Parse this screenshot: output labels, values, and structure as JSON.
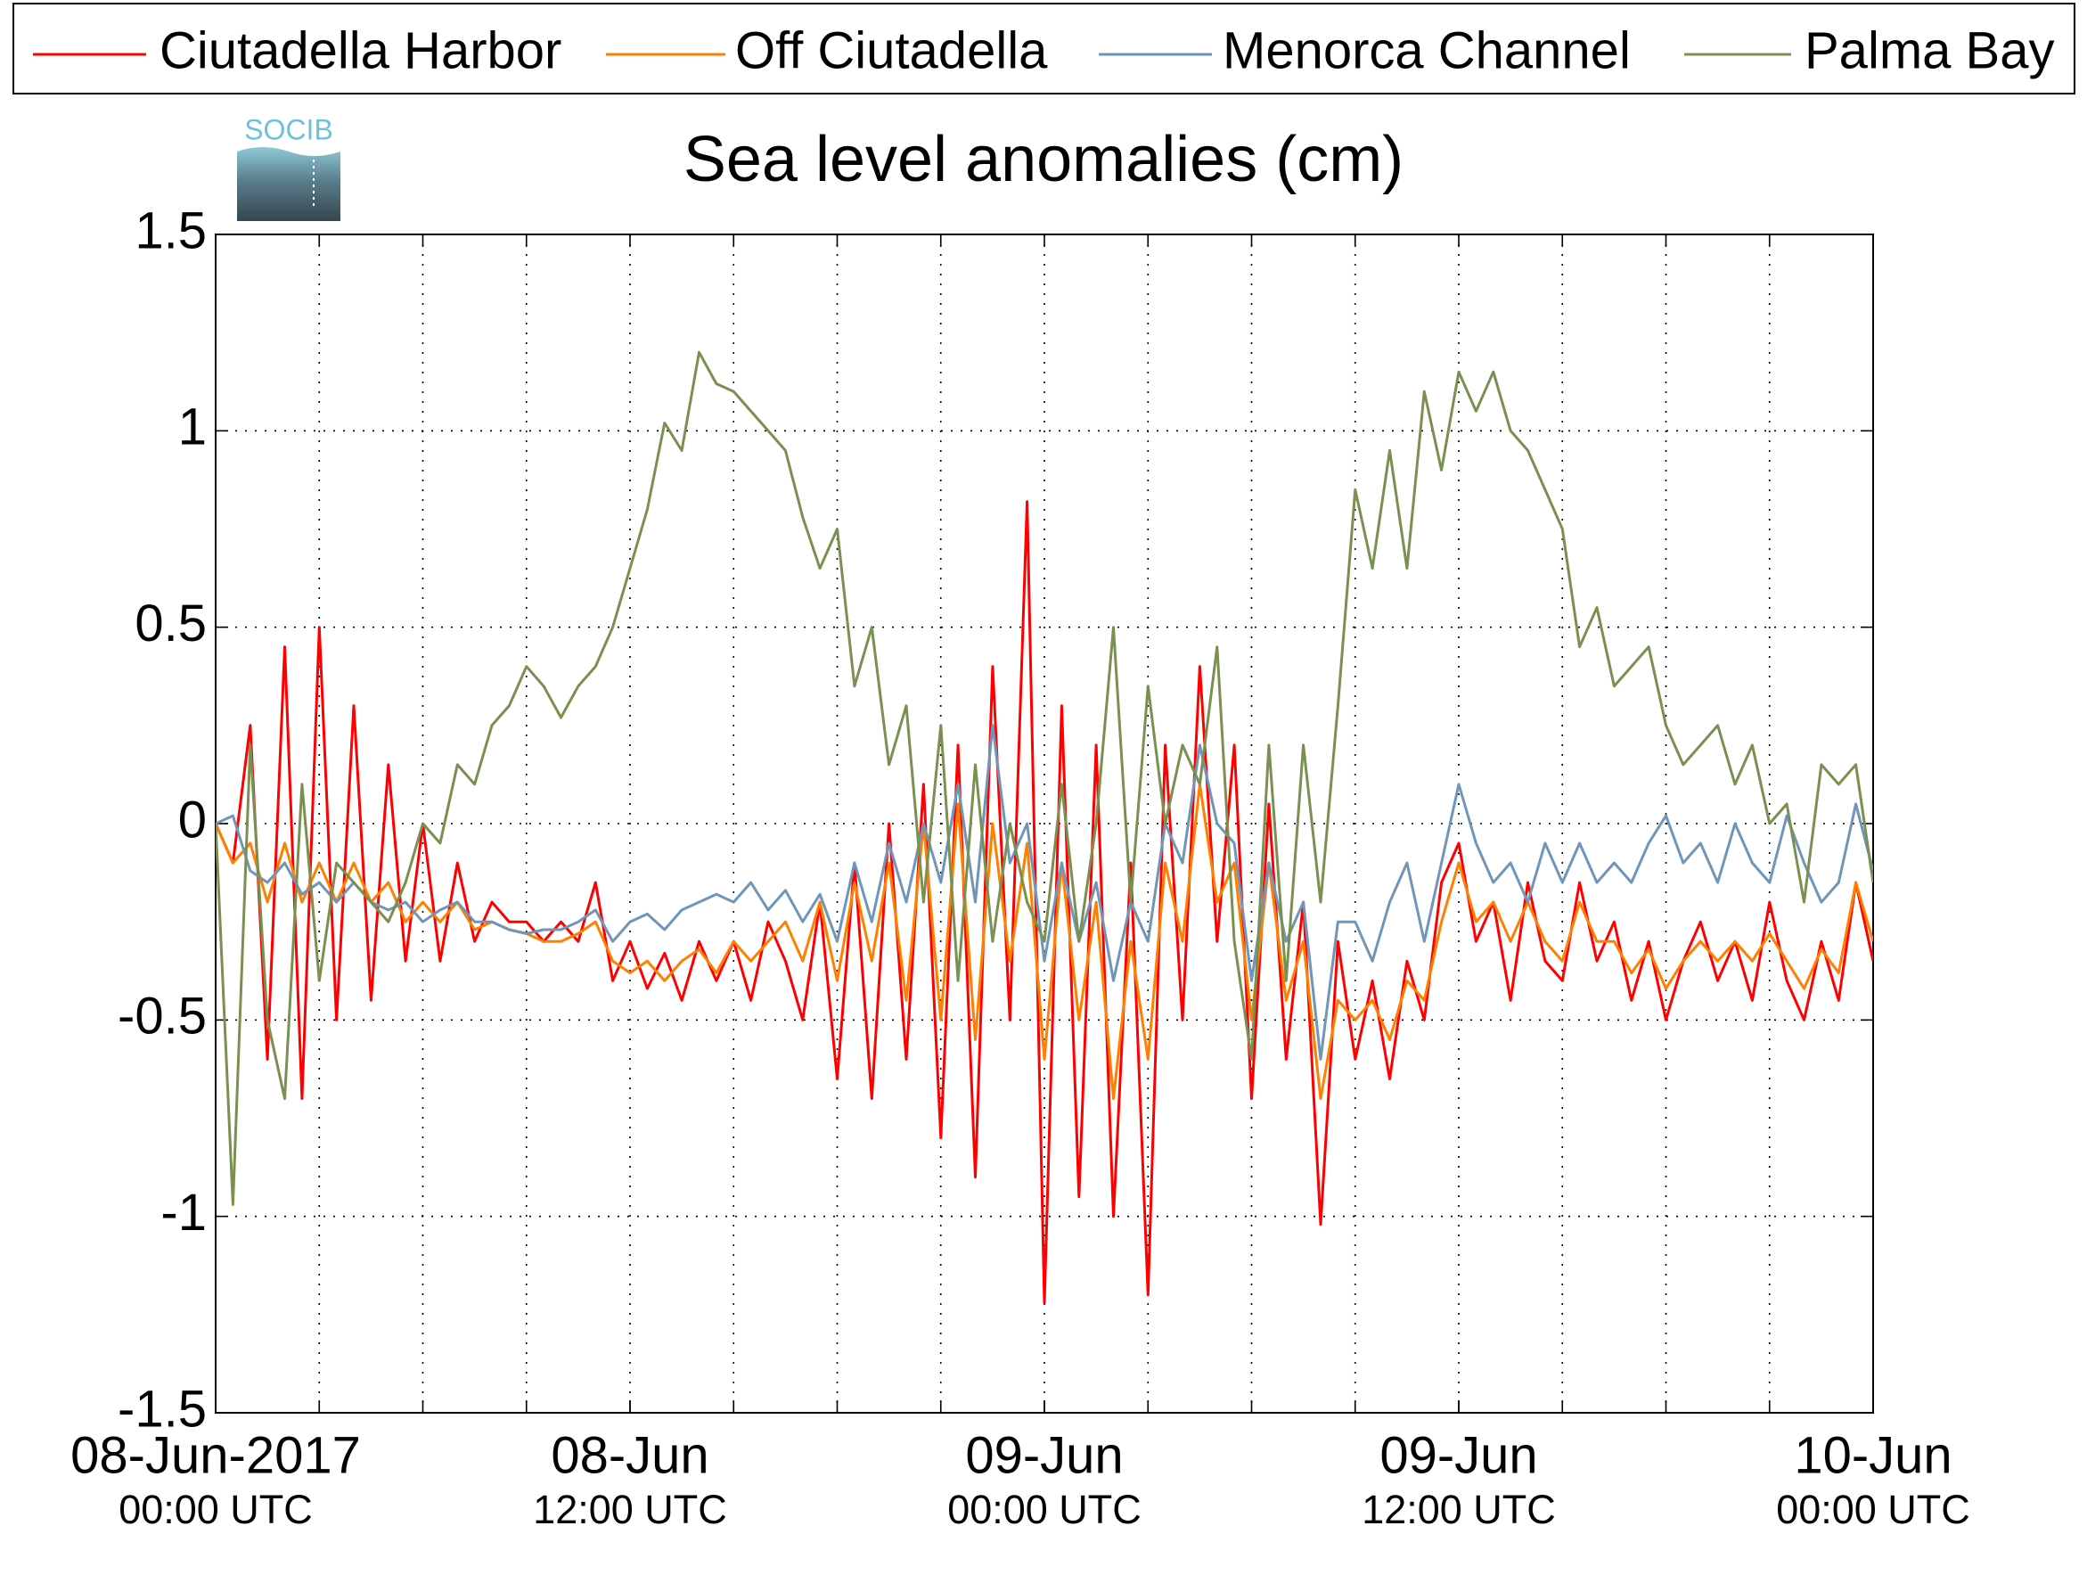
{
  "logo": "SOCIB",
  "chart_data": {
    "type": "line",
    "title": "Sea level anomalies (cm)",
    "legend": "top",
    "grid": true,
    "xlim": [
      0,
      48
    ],
    "xticks": [
      {
        "value": 0,
        "label": "08-Jun-2017",
        "sublabel": "00:00 UTC"
      },
      {
        "value": 12,
        "label": "08-Jun",
        "sublabel": "12:00 UTC"
      },
      {
        "value": 24,
        "label": "09-Jun",
        "sublabel": "00:00 UTC"
      },
      {
        "value": 36,
        "label": "09-Jun",
        "sublabel": "12:00 UTC"
      },
      {
        "value": 48,
        "label": "10-Jun",
        "sublabel": "00:00 UTC"
      }
    ],
    "xgrid_ticks": [
      3,
      6,
      9,
      12,
      15,
      18,
      21,
      24,
      27,
      30,
      33,
      36,
      39,
      42,
      45
    ],
    "ylim": [
      -1.5,
      1.5
    ],
    "yticks": [
      -1.5,
      -1,
      -0.5,
      0,
      0.5,
      1,
      1.5
    ],
    "x": [
      0,
      0.5,
      1,
      1.5,
      2,
      2.5,
      3,
      3.5,
      4,
      4.5,
      5,
      5.5,
      6,
      6.5,
      7,
      7.5,
      8,
      8.5,
      9,
      9.5,
      10,
      10.5,
      11,
      11.5,
      12,
      12.5,
      13,
      13.5,
      14,
      14.5,
      15,
      15.5,
      16,
      16.5,
      17,
      17.5,
      18,
      18.5,
      19,
      19.5,
      20,
      20.5,
      21,
      21.5,
      22,
      22.5,
      23,
      23.5,
      24,
      24.5,
      25,
      25.5,
      26,
      26.5,
      27,
      27.5,
      28,
      28.5,
      29,
      29.5,
      30,
      30.5,
      31,
      31.5,
      32,
      32.5,
      33,
      33.5,
      34,
      34.5,
      35,
      35.5,
      36,
      36.5,
      37,
      37.5,
      38,
      38.5,
      39,
      39.5,
      40,
      40.5,
      41,
      41.5,
      42,
      42.5,
      43,
      43.5,
      44,
      44.5,
      45,
      45.5,
      46,
      46.5,
      47,
      47.5,
      48
    ],
    "series": [
      {
        "name": "Ciutadella Harbor",
        "color": "#ff0000",
        "values": [
          0,
          -0.1,
          0.25,
          -0.6,
          0.45,
          -0.7,
          0.5,
          -0.5,
          0.3,
          -0.45,
          0.15,
          -0.35,
          0,
          -0.35,
          -0.1,
          -0.3,
          -0.2,
          -0.25,
          -0.25,
          -0.3,
          -0.25,
          -0.3,
          -0.15,
          -0.4,
          -0.3,
          -0.42,
          -0.33,
          -0.45,
          -0.3,
          -0.4,
          -0.3,
          -0.45,
          -0.25,
          -0.35,
          -0.5,
          -0.2,
          -0.65,
          -0.1,
          -0.7,
          0,
          -0.6,
          0.1,
          -0.8,
          0.2,
          -0.9,
          0.4,
          -0.5,
          0.82,
          -1.22,
          0.3,
          -0.95,
          0.2,
          -1,
          -0.1,
          -1.2,
          0.2,
          -0.5,
          0.4,
          -0.3,
          0.2,
          -0.7,
          0.05,
          -0.6,
          -0.2,
          -1.02,
          -0.3,
          -0.6,
          -0.4,
          -0.65,
          -0.35,
          -0.5,
          -0.15,
          -0.05,
          -0.3,
          -0.2,
          -0.45,
          -0.15,
          -0.35,
          -0.4,
          -0.15,
          -0.35,
          -0.25,
          -0.45,
          -0.3,
          -0.5,
          -0.35,
          -0.25,
          -0.4,
          -0.3,
          -0.45,
          -0.2,
          -0.4,
          -0.5,
          -0.3,
          -0.45,
          -0.15,
          -0.35
        ]
      },
      {
        "name": "Off Ciutadella",
        "color": "#ff8000",
        "values": [
          0,
          -0.1,
          -0.05,
          -0.2,
          -0.05,
          -0.2,
          -0.1,
          -0.2,
          -0.1,
          -0.2,
          -0.15,
          -0.25,
          -0.2,
          -0.25,
          -0.2,
          -0.27,
          -0.25,
          -0.27,
          -0.28,
          -0.3,
          -0.3,
          -0.28,
          -0.25,
          -0.35,
          -0.38,
          -0.35,
          -0.4,
          -0.35,
          -0.32,
          -0.38,
          -0.3,
          -0.35,
          -0.3,
          -0.25,
          -0.35,
          -0.2,
          -0.4,
          -0.15,
          -0.35,
          -0.1,
          -0.45,
          0,
          -0.5,
          0.05,
          -0.55,
          0,
          -0.35,
          -0.05,
          -0.6,
          -0.1,
          -0.5,
          -0.2,
          -0.7,
          -0.3,
          -0.6,
          -0.1,
          -0.3,
          0.1,
          -0.2,
          -0.1,
          -0.5,
          -0.1,
          -0.45,
          -0.3,
          -0.7,
          -0.45,
          -0.5,
          -0.45,
          -0.55,
          -0.4,
          -0.45,
          -0.25,
          -0.1,
          -0.25,
          -0.2,
          -0.3,
          -0.2,
          -0.3,
          -0.35,
          -0.2,
          -0.3,
          -0.3,
          -0.38,
          -0.32,
          -0.42,
          -0.35,
          -0.3,
          -0.35,
          -0.3,
          -0.35,
          -0.28,
          -0.35,
          -0.42,
          -0.32,
          -0.38,
          -0.15,
          -0.3
        ]
      },
      {
        "name": "Menorca Channel",
        "color": "#6f96b9",
        "values": [
          0,
          0.02,
          -0.12,
          -0.15,
          -0.1,
          -0.18,
          -0.15,
          -0.2,
          -0.15,
          -0.2,
          -0.22,
          -0.2,
          -0.25,
          -0.22,
          -0.2,
          -0.25,
          -0.25,
          -0.27,
          -0.28,
          -0.27,
          -0.27,
          -0.25,
          -0.22,
          -0.3,
          -0.25,
          -0.23,
          -0.27,
          -0.22,
          -0.2,
          -0.18,
          -0.2,
          -0.15,
          -0.22,
          -0.17,
          -0.25,
          -0.18,
          -0.3,
          -0.1,
          -0.25,
          -0.05,
          -0.2,
          0,
          -0.15,
          0.1,
          -0.2,
          0.25,
          -0.1,
          0,
          -0.35,
          -0.1,
          -0.3,
          -0.15,
          -0.4,
          -0.2,
          -0.3,
          0,
          -0.1,
          0.2,
          0,
          -0.05,
          -0.4,
          -0.1,
          -0.3,
          -0.2,
          -0.6,
          -0.25,
          -0.25,
          -0.35,
          -0.2,
          -0.1,
          -0.3,
          -0.1,
          0.1,
          -0.05,
          -0.15,
          -0.1,
          -0.2,
          -0.05,
          -0.15,
          -0.05,
          -0.15,
          -0.1,
          -0.15,
          -0.05,
          0.02,
          -0.1,
          -0.05,
          -0.15,
          0,
          -0.1,
          -0.15,
          0.02,
          -0.1,
          -0.2,
          -0.15,
          0.05,
          -0.12
        ]
      },
      {
        "name": "Palma Bay",
        "color": "#7a9050",
        "values": [
          0,
          -0.97,
          0.2,
          -0.5,
          -0.7,
          0.1,
          -0.4,
          -0.1,
          -0.15,
          -0.2,
          -0.25,
          -0.15,
          0,
          -0.05,
          0.15,
          0.1,
          0.25,
          0.3,
          0.4,
          0.35,
          0.27,
          0.35,
          0.4,
          0.5,
          0.65,
          0.8,
          1.02,
          0.95,
          1.2,
          1.12,
          1.1,
          1.05,
          1,
          0.95,
          0.78,
          0.65,
          0.75,
          0.35,
          0.5,
          0.15,
          0.3,
          -0.2,
          0.25,
          -0.4,
          0.15,
          -0.3,
          0,
          -0.2,
          -0.3,
          0.1,
          -0.3,
          0,
          0.5,
          -0.2,
          0.35,
          0,
          0.2,
          0.1,
          0.45,
          -0.3,
          -0.6,
          0.2,
          -0.4,
          0.2,
          -0.2,
          0.3,
          0.85,
          0.65,
          0.95,
          0.65,
          1.1,
          0.9,
          1.15,
          1.05,
          1.15,
          1,
          0.95,
          0.85,
          0.75,
          0.45,
          0.55,
          0.35,
          0.4,
          0.45,
          0.25,
          0.15,
          0.2,
          0.25,
          0.1,
          0.2,
          0,
          0.05,
          -0.2,
          0.15,
          0.1,
          0.15,
          -0.15
        ]
      }
    ]
  }
}
